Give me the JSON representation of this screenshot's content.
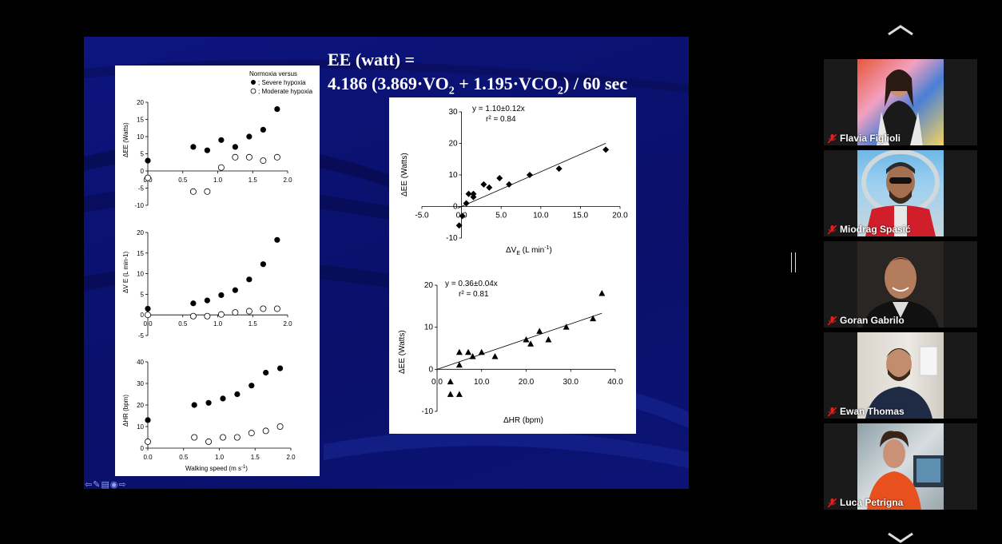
{
  "slide": {
    "formula_line1": "EE (watt) =",
    "formula_line2_pre": "4.186 (3.869",
    "formula_dot": "·",
    "formula_vo": "VO",
    "formula_sub2": "2",
    "formula_mid": " + 1.195",
    "formula_vco": "VCO",
    "formula_post": ") / 60 sec",
    "nav_icons": [
      "prev-arrow-icon",
      "pen-icon",
      "menu-icon",
      "home-icon",
      "next-arrow-icon"
    ]
  },
  "left_panel": {
    "legend_title": "Normoxia versus",
    "legend_filled": "; Severe hypoxia",
    "legend_open": "; Moderate hypoxia",
    "xlabel": "Walking speed (m s",
    "xlabel_sup": "-1",
    "xlabel_close": ")"
  },
  "right_panel": {
    "eq1": "y = 1.10±0.12x",
    "r1": "r² = 0.84",
    "eq2": "y = 0.36±0.04x",
    "r2": "r² = 0.81",
    "ylabel": "ΔEE (Watts)",
    "xlabel1": "ΔV",
    "xlabel1_sub": "E",
    "xlabel1_rest": " (L min",
    "xlabel1_sup": "-1",
    "xlabel1_close": ")",
    "xlabel2": "ΔHR (bpm)"
  },
  "chart_data": [
    {
      "type": "scatter",
      "ylabel": "ΔEE (Watts)",
      "xlim": [
        0,
        2.0
      ],
      "ylim": [
        -10,
        20
      ],
      "xticks": [
        "0.0",
        "0.5",
        "1.0",
        "1.5",
        "2.0"
      ],
      "yticks": [
        "20",
        "15",
        "10",
        "5",
        "0",
        "-5",
        "-10"
      ],
      "series": [
        {
          "name": "Severe hypoxia",
          "x": [
            0,
            0.65,
            0.85,
            1.05,
            1.25,
            1.45,
            1.65,
            1.85
          ],
          "y": [
            3,
            7,
            6,
            9,
            7,
            10,
            12,
            18
          ]
        },
        {
          "name": "Moderate hypoxia",
          "x": [
            0,
            0.65,
            0.85,
            1.05,
            1.25,
            1.45,
            1.65,
            1.85
          ],
          "y": [
            -2,
            -6,
            -6,
            1,
            4,
            4,
            3,
            4
          ]
        }
      ]
    },
    {
      "type": "scatter",
      "ylabel": "ΔV E (L min-1)",
      "xlim": [
        0,
        2.0
      ],
      "ylim": [
        -5,
        20
      ],
      "xticks": [
        "0.0",
        "0.5",
        "1.0",
        "1.5",
        "2.0"
      ],
      "yticks": [
        "20",
        "15",
        "10",
        "5",
        "0",
        "-5"
      ],
      "series": [
        {
          "name": "Severe hypoxia",
          "x": [
            0,
            0.65,
            0.85,
            1.05,
            1.25,
            1.45,
            1.65,
            1.85
          ],
          "y": [
            1.5,
            2.8,
            3.5,
            4.8,
            6,
            8.6,
            12.3,
            18.2
          ]
        },
        {
          "name": "Moderate hypoxia",
          "x": [
            0,
            0.65,
            0.85,
            1.05,
            1.25,
            1.45,
            1.65,
            1.85
          ],
          "y": [
            0,
            -0.3,
            -0.3,
            0.1,
            0.6,
            0.9,
            1.5,
            1.5
          ]
        }
      ]
    },
    {
      "type": "scatter",
      "ylabel": "ΔHR (bpm)",
      "xlim": [
        0,
        2.0
      ],
      "ylim": [
        0,
        40
      ],
      "xticks": [
        "0.0",
        "0.5",
        "1.0",
        "1.5",
        "2.0"
      ],
      "yticks": [
        "40",
        "30",
        "20",
        "10",
        "0"
      ],
      "series": [
        {
          "name": "Severe hypoxia",
          "x": [
            0,
            0.65,
            0.85,
            1.05,
            1.25,
            1.45,
            1.65,
            1.85
          ],
          "y": [
            13,
            20,
            21,
            23,
            25,
            29,
            35,
            37
          ]
        },
        {
          "name": "Moderate hypoxia",
          "x": [
            0,
            0.65,
            0.85,
            1.05,
            1.25,
            1.45,
            1.65,
            1.85
          ],
          "y": [
            3,
            5,
            3,
            5,
            5,
            7,
            8,
            10
          ]
        }
      ]
    },
    {
      "type": "scatter",
      "xlim": [
        -5,
        20
      ],
      "ylim": [
        -10,
        30
      ],
      "xticks": [
        "-5.0",
        "0.0",
        "5.0",
        "10.0",
        "15.0",
        "20.0"
      ],
      "yticks": [
        "30",
        "20",
        "10",
        "0",
        "-10"
      ],
      "fit_slope": 1.1,
      "series": [
        {
          "x": [
            -0.3,
            0.1,
            0.6,
            0.9,
            1.5,
            1.5,
            2.8,
            3.5,
            4.8,
            6,
            8.6,
            12.3,
            18.2
          ],
          "y": [
            -6,
            -3,
            1,
            4,
            4,
            3,
            7,
            6,
            9,
            7,
            10,
            12,
            18
          ]
        }
      ]
    },
    {
      "type": "scatter",
      "xlim": [
        0,
        40
      ],
      "ylim": [
        -10,
        20
      ],
      "xticks": [
        "0.0",
        "10.0",
        "20.0",
        "30.0",
        "40.0"
      ],
      "yticks": [
        "20",
        "10",
        "0",
        "-10"
      ],
      "fit_slope": 0.36,
      "series": [
        {
          "x": [
            3,
            3,
            5,
            5,
            5,
            7,
            8,
            10,
            13,
            20,
            21,
            23,
            25,
            29,
            35,
            37
          ],
          "y": [
            -3,
            -6,
            -6,
            1,
            4,
            4,
            3,
            4,
            3,
            7,
            6,
            9,
            7,
            10,
            12,
            18
          ]
        }
      ]
    }
  ],
  "participants": [
    {
      "name": "Flavia Figlioli"
    },
    {
      "name": "Miodrag Spasić"
    },
    {
      "name": "Goran Gabrilo"
    },
    {
      "name": "Ewan Thomas"
    },
    {
      "name": "Luca Petrigna"
    }
  ],
  "colors": {
    "slide_bg": "#0a1170",
    "mute_icon": "#e02020",
    "tile_bg": "#1a1a1a"
  }
}
